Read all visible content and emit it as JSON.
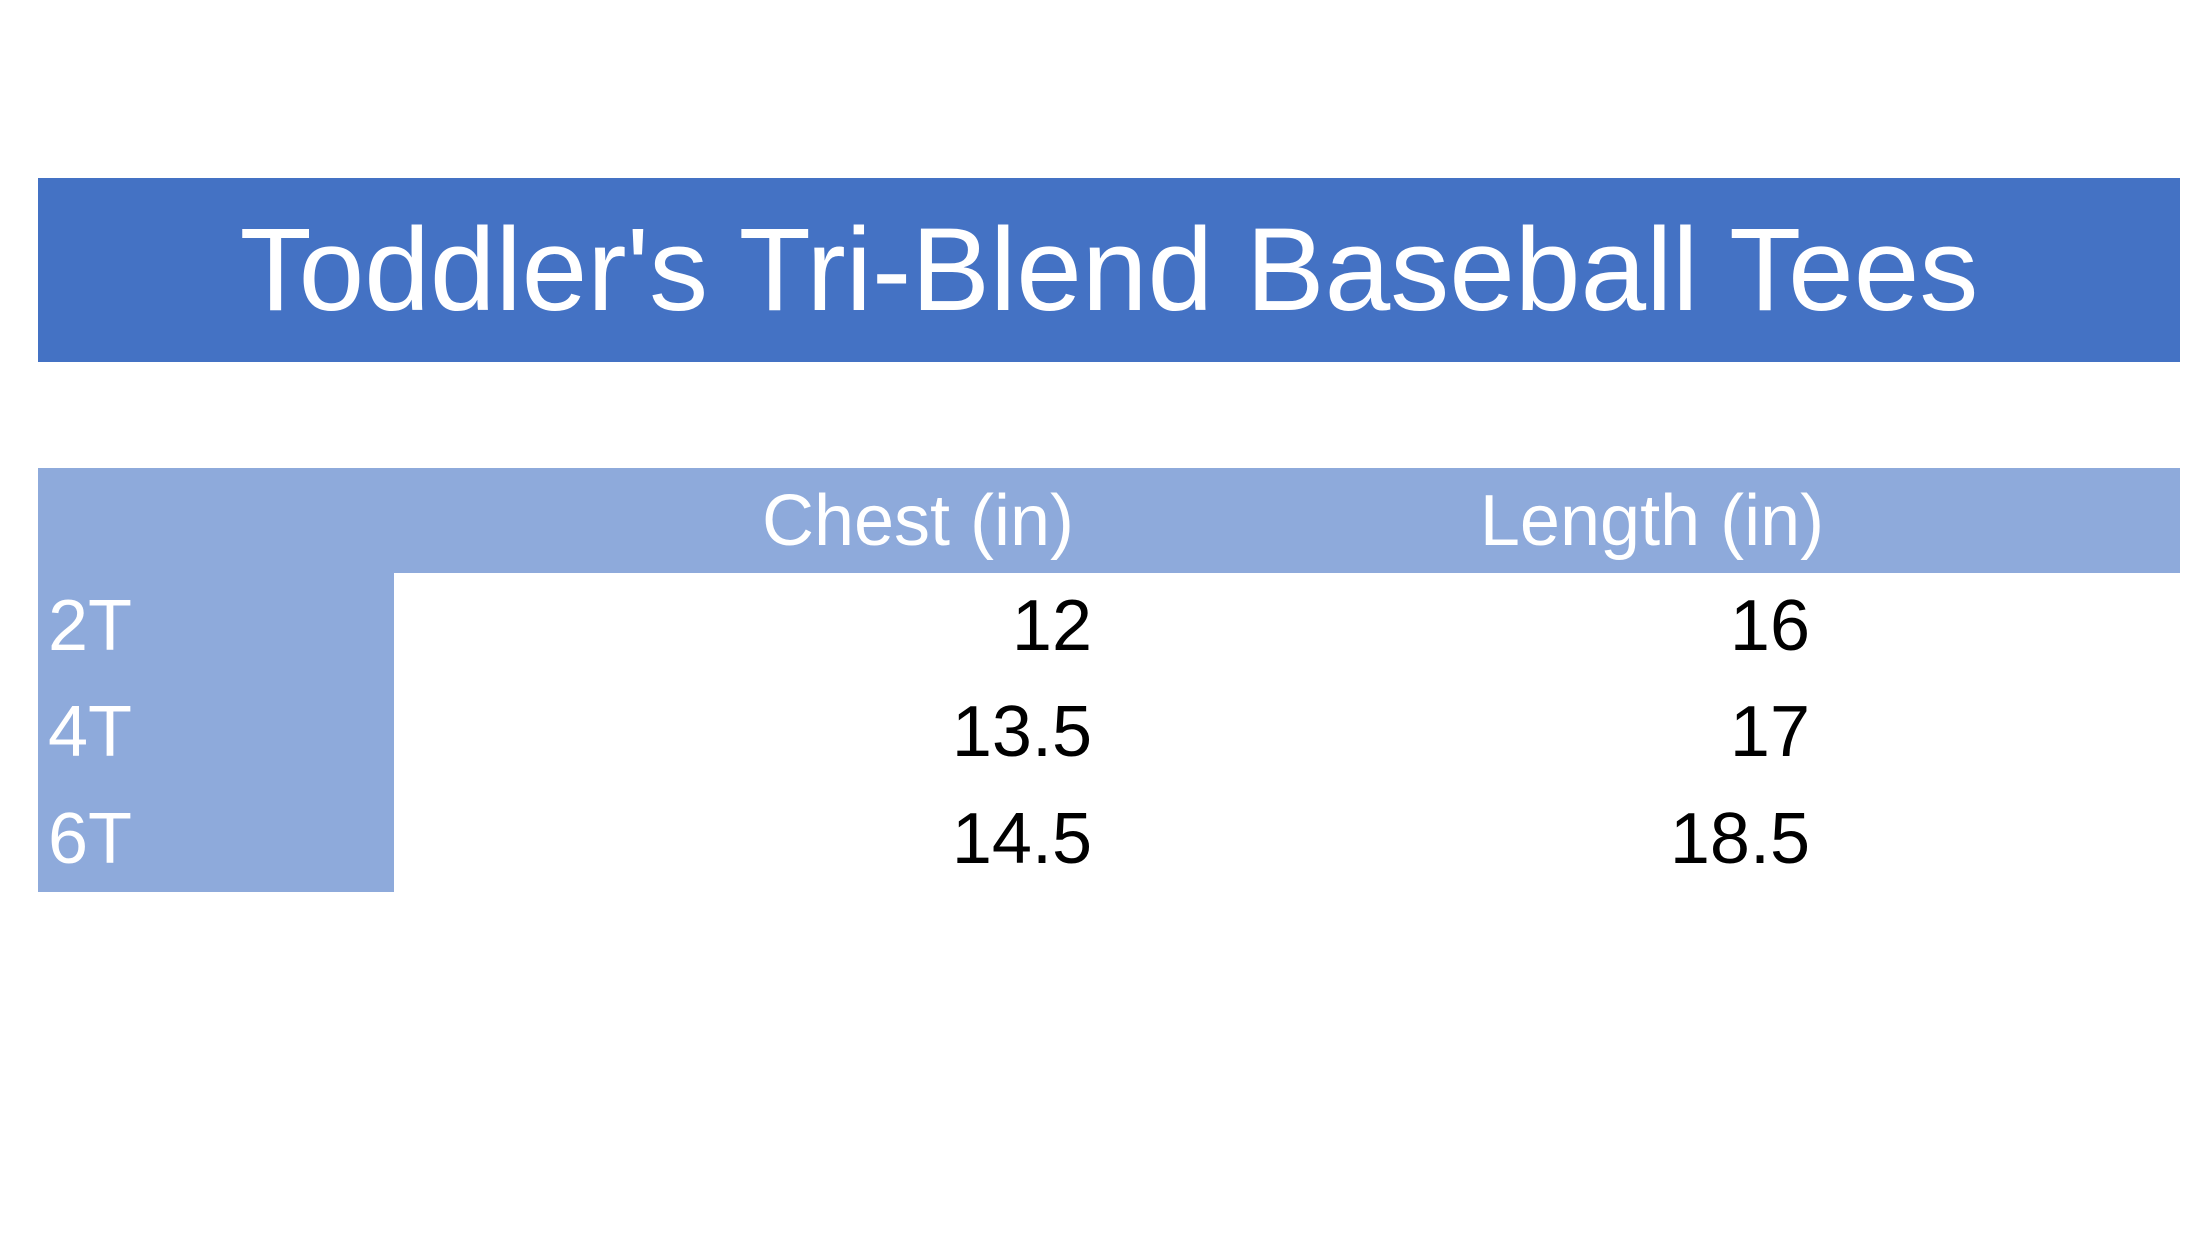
{
  "title": "Toddler's Tri-Blend Baseball Tees",
  "colors": {
    "title_bar_bg": "#4472C4",
    "header_row_bg": "#8EAADB",
    "header_text": "#FFFFFF",
    "value_text": "#000000",
    "page_bg": "#FFFFFF"
  },
  "table": {
    "corner_label": "",
    "columns": [
      "Chest (in)",
      "Length (in)"
    ],
    "rows": [
      {
        "size": "2T",
        "chest": "12",
        "length": "16"
      },
      {
        "size": "4T",
        "chest": "13.5",
        "length": "17"
      },
      {
        "size": "6T",
        "chest": "14.5",
        "length": "18.5"
      }
    ]
  },
  "chart_data": {
    "type": "table",
    "title": "Toddler's Tri-Blend Baseball Tees",
    "columns": [
      "",
      "Chest (in)",
      "Length (in)"
    ],
    "rows": [
      [
        "2T",
        12,
        16
      ],
      [
        "4T",
        13.5,
        17
      ],
      [
        "6T",
        14.5,
        18.5
      ]
    ],
    "notes": "Size chart table; row labels 2T/4T/6T, measurements in inches"
  }
}
